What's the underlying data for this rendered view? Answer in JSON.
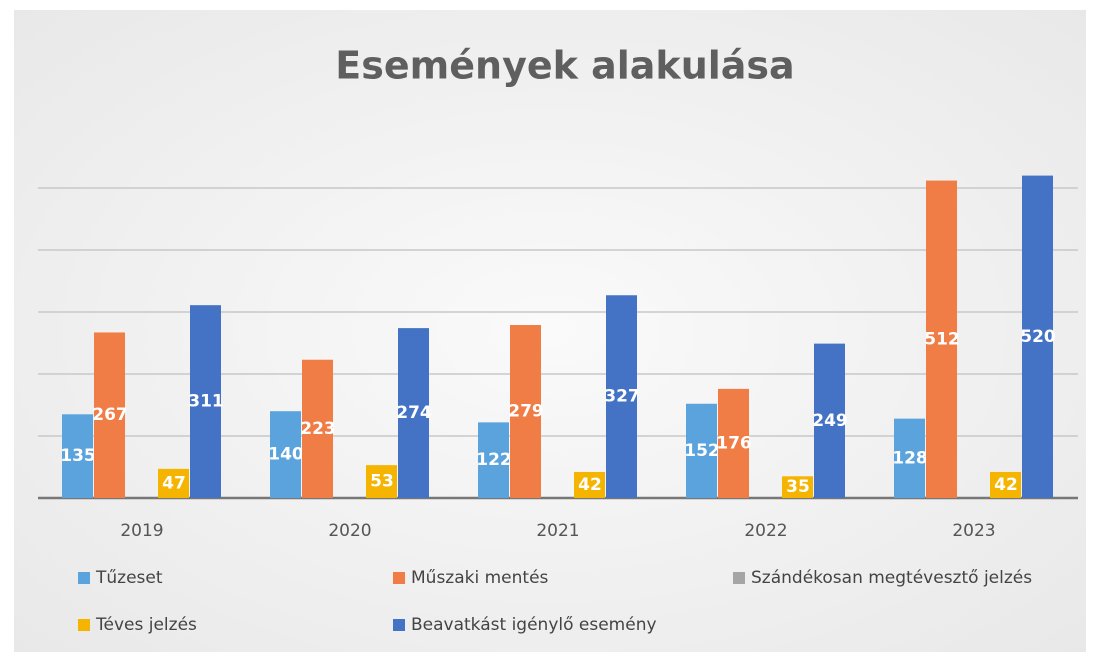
{
  "chart_data": {
    "type": "bar",
    "title": "Események alakulása",
    "categories": [
      "2019",
      "2020",
      "2021",
      "2022",
      "2023"
    ],
    "series": [
      {
        "name": "Tűzeset",
        "color": "#5ba3dd",
        "values": [
          135,
          140,
          122,
          152,
          128
        ]
      },
      {
        "name": "Műszaki mentés",
        "color": "#f07d45",
        "values": [
          267,
          223,
          279,
          176,
          512
        ]
      },
      {
        "name": "Szándékosan megtévesztő jelzés",
        "color": "#a5a5a5",
        "values": [
          0,
          0,
          0,
          0,
          0
        ]
      },
      {
        "name": "Téves jelzés",
        "color": "#f4b400",
        "values": [
          47,
          53,
          42,
          35,
          42
        ]
      },
      {
        "name": "Beavatkást igénylő esemény",
        "color": "#4472c4",
        "values": [
          311,
          274,
          327,
          249,
          520
        ]
      }
    ],
    "ylim": [
      0,
      550
    ],
    "yticks": [
      0,
      100,
      200,
      300,
      400,
      500
    ],
    "grid": true
  }
}
